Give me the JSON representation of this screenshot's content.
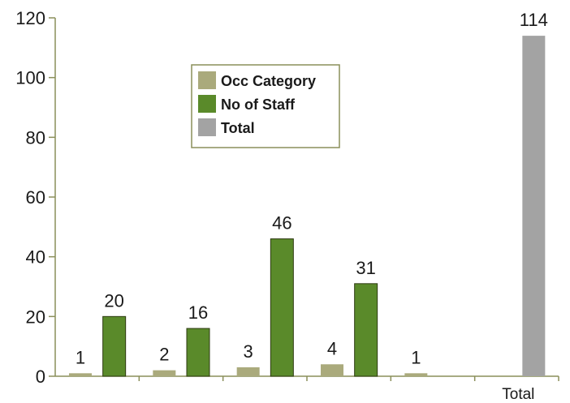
{
  "chart_data": {
    "type": "bar",
    "ylim": [
      0,
      120
    ],
    "yticks": [
      0,
      20,
      40,
      60,
      80,
      100,
      120
    ],
    "categories": [
      "",
      "",
      "",
      "",
      "",
      "Total"
    ],
    "legend": {
      "placement": "top-center",
      "entries": [
        {
          "label": "Occ Category",
          "color": "#aaaa7c"
        },
        {
          "label": "No of Staff",
          "color": "#5a8a2a"
        },
        {
          "label": "Total",
          "color": "#a3a3a3"
        }
      ]
    },
    "series": [
      {
        "name": "Occ Category",
        "color": "#aaaa7c",
        "values": [
          1,
          2,
          3,
          4,
          1,
          null
        ]
      },
      {
        "name": "No of Staff",
        "color": "#5a8a2a",
        "values": [
          20,
          16,
          46,
          31,
          null,
          null
        ]
      },
      {
        "name": "Total",
        "color": "#a3a3a3",
        "values": [
          null,
          null,
          null,
          null,
          null,
          114
        ]
      }
    ],
    "grid": false
  }
}
